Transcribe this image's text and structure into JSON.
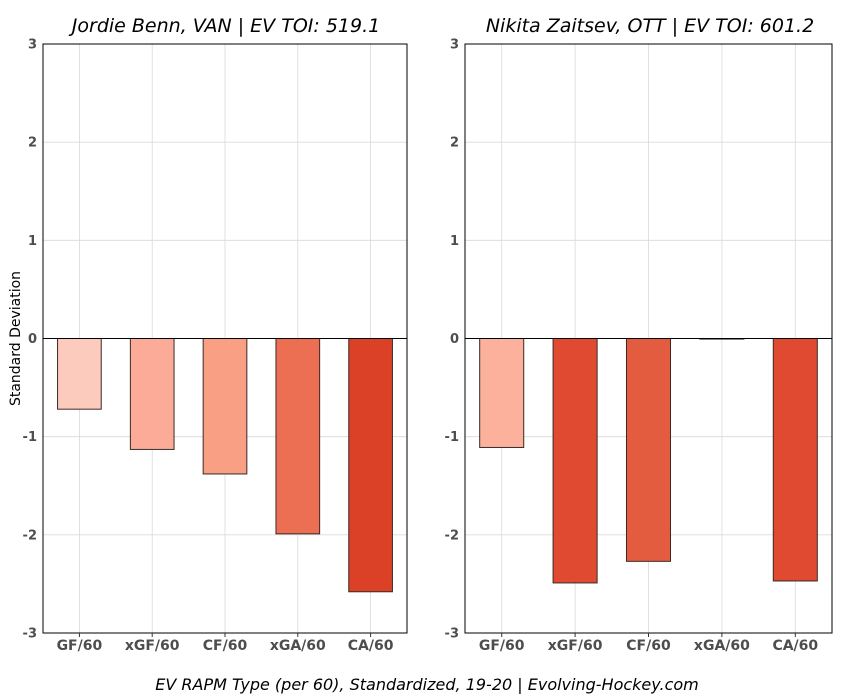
{
  "caption": "EV RAPM Type (per 60), Standardized, 19-20    |    Evolving-Hockey.com",
  "chart_data": [
    {
      "type": "bar",
      "title": "Jordie Benn, VAN  |  EV TOI: 519.1",
      "ylabel": "Standard Deviation",
      "xlabel": "",
      "categories": [
        "GF/60",
        "xGF/60",
        "CF/60",
        "xGA/60",
        "CA/60"
      ],
      "values": [
        -0.72,
        -1.13,
        -1.38,
        -1.99,
        -2.58
      ],
      "colors": [
        "#fdcbbe",
        "#fcab98",
        "#f89f84",
        "#ec6f53",
        "#db4127"
      ],
      "ylim": [
        -3,
        3
      ],
      "yticks": [
        "-3",
        "-2",
        "-1",
        "0",
        "1",
        "2",
        "3"
      ],
      "grid": true,
      "show_ylabel": true
    },
    {
      "type": "bar",
      "title": "Nikita Zaitsev, OTT  |  EV TOI: 601.2",
      "ylabel": "",
      "xlabel": "",
      "categories": [
        "GF/60",
        "xGF/60",
        "CF/60",
        "xGA/60",
        "CA/60"
      ],
      "values": [
        -1.11,
        -2.49,
        -2.27,
        0.0,
        -2.47
      ],
      "colors": [
        "#fcb19d",
        "#df4a30",
        "#e35c40",
        "#fdd5c8",
        "#df4a30"
      ],
      "ylim": [
        -3,
        3
      ],
      "yticks": [
        "-3",
        "-2",
        "-1",
        "0",
        "1",
        "2",
        "3"
      ],
      "grid": true,
      "show_ylabel": false
    }
  ]
}
